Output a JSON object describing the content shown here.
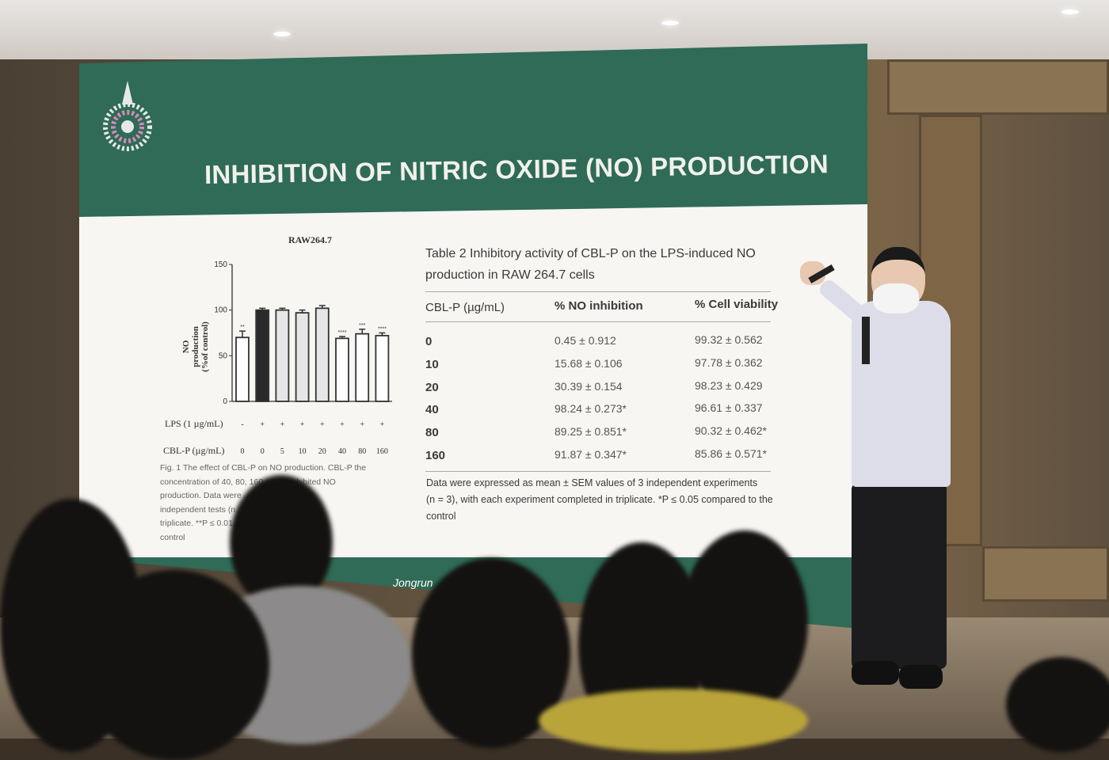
{
  "slide": {
    "title": "INHIBITION OF NITRIC OXIDE (NO) PRODUCTION",
    "footer_text": "Jongrun",
    "figure": {
      "chart_data": {
        "type": "bar",
        "title": "RAW264.7",
        "ylabel": "NO production (%of control)",
        "ylim": [
          0,
          150
        ],
        "yticks": [
          "0",
          "50",
          "100",
          "150"
        ],
        "row_labels": [
          "LPS (1 µg/mL)",
          "CBL-P (µg/mL)"
        ],
        "lps": [
          "-",
          "+",
          "+",
          "+",
          "+",
          "+",
          "+",
          "+"
        ],
        "cblp": [
          "0",
          "0",
          "5",
          "10",
          "20",
          "40",
          "80",
          "160"
        ],
        "values": [
          70,
          100,
          100,
          97,
          102,
          69,
          74,
          72
        ],
        "errors": [
          7,
          2,
          2,
          3,
          3,
          2,
          5,
          3
        ],
        "significance": [
          "**",
          "",
          "",
          "",
          "",
          "****",
          "***",
          "****"
        ],
        "fills": [
          "#ffffff",
          "#2a2a2a",
          "#e6e6e6",
          "#e6e6e6",
          "#e6e6e6",
          "#ffffff",
          "#ffffff",
          "#ffffff"
        ]
      },
      "caption_lines": [
        "Fig. 1  The effect of CBL-P on NO production. CBL-P the",
        "concentration of 40, 80, 160 ... ntly inhibited NO",
        "production. Data were ... SEM values of 3",
        "independent tests (n ... completed in",
        "triplicate. **P ≤ 0.01, ... 001 compared to the",
        "control"
      ]
    },
    "table": {
      "title_line1": "Table 2  Inhibitory activity of CBL-P on the LPS-induced NO",
      "title_line2": "production in RAW 264.7 cells",
      "headers": [
        "CBL-P (µg/mL)",
        "% NO inhibition",
        "% Cell viability"
      ],
      "rows": [
        [
          "0",
          "0.45 ± 0.912",
          "99.32 ± 0.562"
        ],
        [
          "10",
          "15.68 ± 0.106",
          "97.78 ± 0.362"
        ],
        [
          "20",
          "30.39 ± 0.154",
          "98.23 ± 0.429"
        ],
        [
          "40",
          "98.24 ± 0.273*",
          "96.61 ± 0.337"
        ],
        [
          "80",
          "89.25 ± 0.851*",
          "90.32 ± 0.462*"
        ],
        [
          "160",
          "91.87 ± 0.347*",
          "85.86 ± 0.571*"
        ]
      ],
      "footnote_lines": [
        "Data were expressed as mean ± SEM values of 3 independent experiments",
        "(n = 3), with each experiment completed in triplicate. *P ≤ 0.05 compared to the",
        "control"
      ]
    }
  },
  "colors": {
    "slide_green": "#2f6b57",
    "slide_white": "#f7f6f3",
    "coat": "#dcdde8"
  }
}
